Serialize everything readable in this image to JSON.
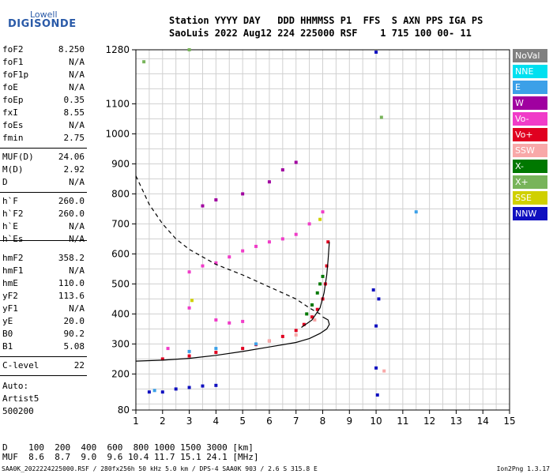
{
  "logo": {
    "line1": "Lowell",
    "line2": "DIGISONDE"
  },
  "header": {
    "labels": "Station YYYY DAY   DDD HHMMSS P1  FFS  S AXN PPS IGA PS",
    "values": "SaoLuis 2022 Aug12 224 225000 RSF    1 715 100 00- 11"
  },
  "params_a": [
    {
      "name": "foF2",
      "value": "8.250"
    },
    {
      "name": "foF1",
      "value": "N/A"
    },
    {
      "name": "foF1p",
      "value": "N/A"
    },
    {
      "name": "foE",
      "value": "N/A"
    },
    {
      "name": "foEp",
      "value": "0.35"
    },
    {
      "name": "fxI",
      "value": "8.55"
    },
    {
      "name": "foEs",
      "value": "N/A"
    },
    {
      "name": "fmin",
      "value": "2.75"
    }
  ],
  "params_b": [
    {
      "name": "MUF(D)",
      "value": "24.06"
    },
    {
      "name": "M(D)",
      "value": "2.92"
    },
    {
      "name": "D",
      "value": "N/A"
    }
  ],
  "params_c": [
    {
      "name": "h`F",
      "value": "260.0"
    },
    {
      "name": "h`F2",
      "value": "260.0"
    },
    {
      "name": "h`E",
      "value": "N/A"
    },
    {
      "name": "h`Es",
      "value": "N/A"
    }
  ],
  "params_d": [
    {
      "name": "hmF2",
      "value": "358.2"
    },
    {
      "name": "hmF1",
      "value": "N/A"
    },
    {
      "name": "hmE",
      "value": "110.0"
    },
    {
      "name": "yF2",
      "value": "113.6"
    },
    {
      "name": "yF1",
      "value": "N/A"
    },
    {
      "name": "yE",
      "value": "20.0"
    },
    {
      "name": "B0",
      "value": "90.2"
    },
    {
      "name": "B1",
      "value": "5.08"
    }
  ],
  "params_e": [
    {
      "name": "C-level",
      "value": "22"
    }
  ],
  "auto": {
    "line1": "Auto:",
    "line2": "Artist5",
    "line3": "500200"
  },
  "bottom": {
    "d_row": "D    100  200  400  600  800 1000 1500 3000 [km]",
    "muf_row": "MUF  8.6  8.7  9.0  9.6 10.4 11.7 15.1 24.1 [MHz]"
  },
  "footer": {
    "left": "SAA0K_2022224225000.RSF / 280fx256h 50 kHz 5.0 km / DPS-4 SAA0K 903 / 2.6 S 315.8 E",
    "right": "Ion2Png 1.3.17"
  },
  "legend": [
    {
      "label": "NoVal",
      "color": "#808080"
    },
    {
      "label": "NNE",
      "color": "#00e0f0"
    },
    {
      "label": "E",
      "color": "#3ca0e8"
    },
    {
      "label": "W",
      "color": "#a000a0"
    },
    {
      "label": "Vo-",
      "color": "#f03cc8"
    },
    {
      "label": "Vo+",
      "color": "#e00020"
    },
    {
      "label": "SSW",
      "color": "#f8a8a8"
    },
    {
      "label": "X-",
      "color": "#007800"
    },
    {
      "label": "X+",
      "color": "#78b45a"
    },
    {
      "label": "SSE",
      "color": "#d0d000"
    },
    {
      "label": "NNW",
      "color": "#1010c0"
    }
  ],
  "chart_data": {
    "type": "scatter",
    "x_ticks": [
      1,
      2,
      3,
      4,
      5,
      6,
      7,
      8,
      9,
      10,
      11,
      12,
      13,
      14,
      15
    ],
    "y_ticks": [
      80,
      200,
      300,
      400,
      500,
      600,
      700,
      800,
      900,
      1000,
      1100,
      1280
    ],
    "xlim": [
      1,
      15
    ],
    "ylim": [
      80,
      1280
    ],
    "grid": true,
    "legend_position": "right",
    "series": [
      {
        "color": "#e00020",
        "points": [
          [
            2.0,
            250
          ],
          [
            3.0,
            260
          ],
          [
            4.0,
            272
          ],
          [
            5.0,
            285
          ],
          [
            5.5,
            298
          ],
          [
            6.0,
            310
          ],
          [
            6.5,
            325
          ],
          [
            7.0,
            345
          ],
          [
            7.3,
            365
          ],
          [
            7.6,
            390
          ],
          [
            7.8,
            415
          ],
          [
            8.0,
            450
          ],
          [
            8.1,
            500
          ],
          [
            8.15,
            560
          ],
          [
            8.2,
            640
          ]
        ]
      },
      {
        "color": "#f03cc8",
        "points": [
          [
            3.0,
            540
          ],
          [
            3.5,
            560
          ],
          [
            4.0,
            570
          ],
          [
            4.5,
            590
          ],
          [
            5.0,
            610
          ],
          [
            5.5,
            625
          ],
          [
            6.0,
            640
          ],
          [
            6.5,
            650
          ],
          [
            7.0,
            665
          ],
          [
            7.5,
            700
          ],
          [
            8.0,
            740
          ],
          [
            4.0,
            380
          ],
          [
            4.5,
            370
          ],
          [
            5.0,
            375
          ],
          [
            3.0,
            420
          ],
          [
            2.2,
            285
          ]
        ]
      },
      {
        "color": "#007800",
        "points": [
          [
            7.4,
            400
          ],
          [
            7.6,
            430
          ],
          [
            7.8,
            470
          ],
          [
            7.9,
            500
          ],
          [
            8.0,
            525
          ]
        ]
      },
      {
        "color": "#1010c0",
        "points": [
          [
            1.5,
            140
          ],
          [
            2.0,
            140
          ],
          [
            2.5,
            150
          ],
          [
            3.0,
            155
          ],
          [
            3.5,
            160
          ],
          [
            4.0,
            162
          ],
          [
            9.9,
            480
          ],
          [
            10.0,
            360
          ],
          [
            10.1,
            450
          ],
          [
            10.0,
            220
          ],
          [
            10.0,
            1272
          ],
          [
            10.05,
            130
          ]
        ]
      },
      {
        "color": "#a000a0",
        "points": [
          [
            3.5,
            760
          ],
          [
            4.0,
            780
          ],
          [
            5.0,
            800
          ],
          [
            6.0,
            840
          ],
          [
            6.5,
            880
          ],
          [
            7.0,
            905
          ]
        ]
      },
      {
        "color": "#3ca0e8",
        "points": [
          [
            1.7,
            145
          ],
          [
            3.0,
            275
          ],
          [
            4.0,
            285
          ],
          [
            5.5,
            300
          ],
          [
            11.5,
            740
          ]
        ]
      },
      {
        "color": "#78b45a",
        "points": [
          [
            1.3,
            1240
          ],
          [
            10.2,
            1055
          ],
          [
            3.0,
            1280
          ]
        ]
      },
      {
        "color": "#d0d000",
        "points": [
          [
            7.9,
            715
          ],
          [
            3.1,
            445
          ]
        ]
      },
      {
        "color": "#f8a8a8",
        "points": [
          [
            6.0,
            310
          ],
          [
            7.0,
            330
          ],
          [
            7.7,
            380
          ],
          [
            10.3,
            210
          ]
        ]
      }
    ],
    "curves": [
      {
        "style": "solid",
        "points": [
          [
            1.0,
            243
          ],
          [
            2.0,
            246
          ],
          [
            3.0,
            252
          ],
          [
            4.0,
            262
          ],
          [
            5.0,
            275
          ],
          [
            6.0,
            290
          ],
          [
            7.0,
            305
          ],
          [
            7.5,
            318
          ],
          [
            7.9,
            335
          ],
          [
            8.15,
            350
          ],
          [
            8.25,
            365
          ],
          [
            8.2,
            380
          ],
          [
            8.0,
            390
          ]
        ]
      },
      {
        "style": "solid",
        "points": [
          [
            7.2,
            355
          ],
          [
            7.6,
            380
          ],
          [
            7.9,
            420
          ],
          [
            8.05,
            470
          ],
          [
            8.15,
            530
          ],
          [
            8.2,
            580
          ],
          [
            8.25,
            640
          ]
        ]
      },
      {
        "style": "dashed",
        "points": [
          [
            1.0,
            860
          ],
          [
            1.5,
            765
          ],
          [
            2.0,
            700
          ],
          [
            2.5,
            650
          ],
          [
            3.0,
            615
          ],
          [
            3.5,
            590
          ],
          [
            4.0,
            565
          ],
          [
            5.0,
            530
          ],
          [
            6.0,
            490
          ],
          [
            7.0,
            450
          ],
          [
            7.5,
            420
          ],
          [
            8.0,
            395
          ]
        ]
      }
    ]
  }
}
